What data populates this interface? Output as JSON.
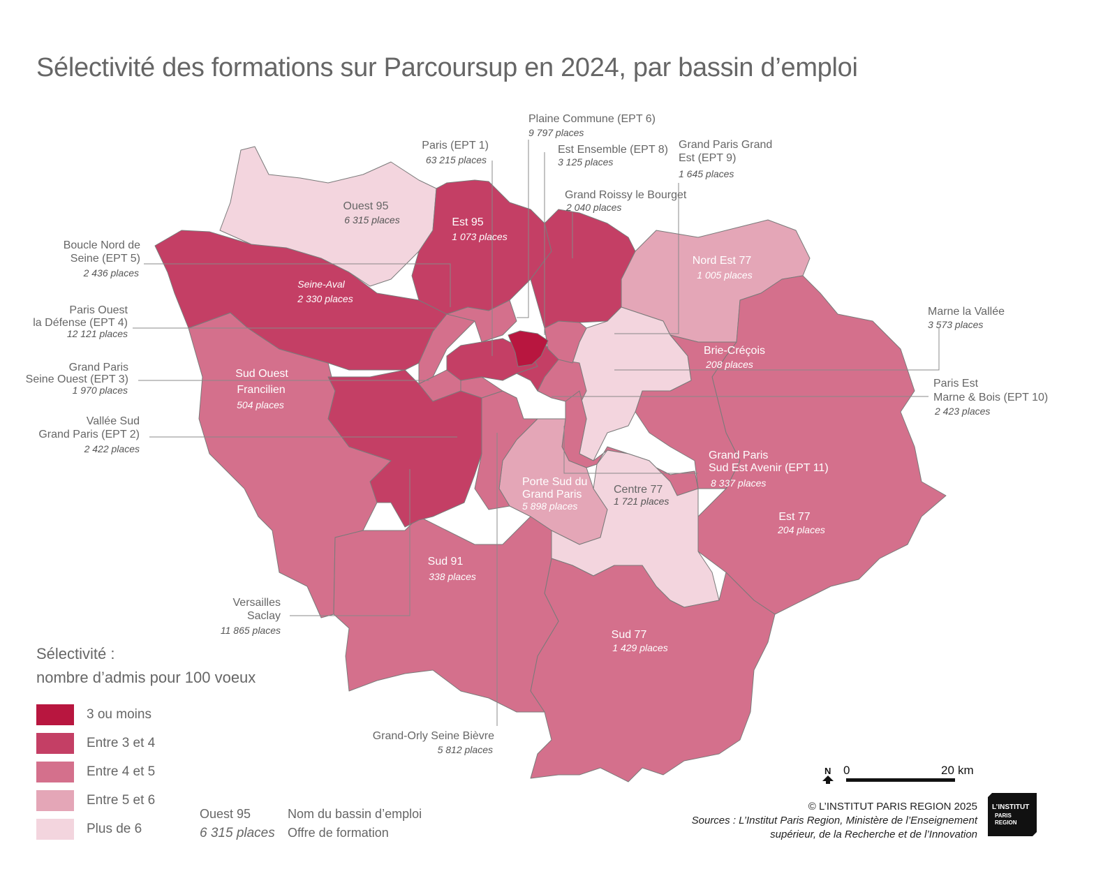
{
  "title": "Sélectivité des formations sur Parcoursup en 2024, par bassin d’emploi",
  "colors": {
    "c1": "#b8163f",
    "c2": "#c43f65",
    "c3": "#d4708c",
    "c4": "#e4a6b7",
    "c5": "#f3d5de"
  },
  "regions": [
    {
      "id": "ouest95",
      "name": "Ouest 95",
      "places": "6 315 places",
      "class": 5
    },
    {
      "id": "est95",
      "name": "Est 95",
      "places": "1 073 places",
      "class": 2
    },
    {
      "id": "seineaval",
      "name": "Seine-Aval",
      "places": "2 330 places",
      "class": 2
    },
    {
      "id": "sudouest",
      "name": "Sud Ouest Francilien",
      "places": "504 places",
      "class": 3
    },
    {
      "id": "versailles",
      "name": "Versailles Saclay",
      "places": "11 865 places",
      "class": 2
    },
    {
      "id": "sud91",
      "name": "Sud 91",
      "places": "338 places",
      "class": 3
    },
    {
      "id": "portesud",
      "name": "Porte Sud du Grand Paris",
      "places": "5 898 places",
      "class": 4
    },
    {
      "id": "centre77",
      "name": "Centre 77",
      "places": "1 721 places",
      "class": 5
    },
    {
      "id": "sud77",
      "name": "Sud 77",
      "places": "1 429 places",
      "class": 3
    },
    {
      "id": "est77",
      "name": "Est 77",
      "places": "204 places",
      "class": 3
    },
    {
      "id": "nordest77",
      "name": "Nord Est 77",
      "places": "1 005 places",
      "class": 4
    },
    {
      "id": "briecrecois",
      "name": "Brie-Créçois",
      "places": "208 places",
      "class": 3
    },
    {
      "id": "marnevallee",
      "name": "Marne la Vallée",
      "places": "3 573 places",
      "class": 5
    },
    {
      "id": "gpsea",
      "name": "Grand Paris Sud Est Avenir (EPT 11)",
      "places": "8 337 places",
      "class": 3
    },
    {
      "id": "roissy",
      "name": "Grand Roissy le Bourget",
      "places": "2 040 places",
      "class": 2
    },
    {
      "id": "paris",
      "name": "Paris (EPT 1)",
      "places": "63 215 places",
      "class": 2
    },
    {
      "id": "plaine",
      "name": "Plaine Commune (EPT 6)",
      "places": "9 797 places",
      "class": 1
    },
    {
      "id": "estensemble",
      "name": "Est Ensemble (EPT 8)",
      "places": "3 125 places",
      "class": 2
    },
    {
      "id": "gpge",
      "name": "Grand Paris Grand Est (EPT 9)",
      "places": "1 645 places",
      "class": 3
    },
    {
      "id": "pemb",
      "name": "Paris Est Marne & Bois (EPT 10)",
      "places": "2 423 places",
      "class": 3
    },
    {
      "id": "boucle",
      "name": "Boucle Nord de Seine (EPT 5)",
      "places": "2 436 places",
      "class": 3
    },
    {
      "id": "pold",
      "name": "Paris Ouest la Défense (EPT 4)",
      "places": "12 121 places",
      "class": 3
    },
    {
      "id": "gpso",
      "name": "Grand Paris Seine Ouest (EPT 3)",
      "places": "1 970 places",
      "class": 3
    },
    {
      "id": "vsgp",
      "name": "Vallée Sud Grand Paris (EPT 2)",
      "places": "2 422 places",
      "class": 3
    },
    {
      "id": "gosb",
      "name": "Grand-Orly Seine Bièvre",
      "places": "5 812 places",
      "class": 3
    }
  ],
  "labels": {
    "plaine_name": "Plaine Commune (EPT 6)",
    "plaine_places": "9 797 places",
    "paris_name": "Paris (EPT 1)",
    "paris_places": "63 215 places",
    "estens_name": "Est Ensemble (EPT 8)",
    "estens_places": "3 125 places",
    "gpge_name1": "Grand Paris Grand",
    "gpge_name2": "Est (EPT 9)",
    "gpge_places": "1 645 places",
    "roissy_name": "Grand Roissy le Bourget",
    "roissy_places": "2 040 places",
    "ouest95_name": "Ouest 95",
    "ouest95_places": "6 315 places",
    "est95_name": "Est 95",
    "est95_places": "1 073 places",
    "nordest77_name": "Nord Est 77",
    "nordest77_places": "1 005 places",
    "boucle_name1": "Boucle Nord de",
    "boucle_name2": "Seine (EPT 5)",
    "boucle_places": "2 436 places",
    "seineaval_name": "Seine-Aval",
    "seineaval_places": "2 330 places",
    "pold_name1": "Paris Ouest",
    "pold_name2": "la Défense (EPT 4)",
    "pold_places": "12 121 places",
    "marne_name": "Marne la Vallée",
    "marne_places": "3 573 places",
    "brie_name": "Brie-Créçois",
    "brie_places": "208 places",
    "gpso_name1": "Grand Paris",
    "gpso_name2": "Seine Ouest (EPT 3)",
    "gpso_places": "1 970 places",
    "sudouest_name1": "Sud Ouest",
    "sudouest_name2": "Francilien",
    "sudouest_places": "504 places",
    "pemb_name1": "Paris Est",
    "pemb_name2": "Marne & Bois (EPT 10)",
    "pemb_places": "2 423 places",
    "vsgp_name1": "Vallée Sud",
    "vsgp_name2": "Grand Paris (EPT 2)",
    "vsgp_places": "2 422 places",
    "gpsea_name1": "Grand Paris",
    "gpsea_name2": "Sud Est Avenir (EPT 11)",
    "gpsea_places": "8 337 places",
    "portesud_name1": "Porte Sud du",
    "portesud_name2": "Grand Paris",
    "portesud_places": "5 898 places",
    "centre77_name": "Centre 77",
    "centre77_places": "1 721 places",
    "est77_name": "Est 77",
    "est77_places": "204 places",
    "sud91_name": "Sud 91",
    "sud91_places": "338 places",
    "versailles_name1": "Versailles",
    "versailles_name2": "Saclay",
    "versailles_places": "11 865 places",
    "sud77_name": "Sud 77",
    "sud77_places": "1 429 places",
    "gosb_name": "Grand-Orly Seine Bièvre",
    "gosb_places": "5 812 places"
  },
  "legend": {
    "title_line1": "Sélectivité :",
    "title_line2": "nombre d’admis pour 100 voeux",
    "items": [
      {
        "label": "3 ou moins",
        "color": "#b8163f"
      },
      {
        "label": "Entre 3 et 4",
        "color": "#c43f65"
      },
      {
        "label": "Entre 4 et 5",
        "color": "#d4708c"
      },
      {
        "label": "Entre 5 et 6",
        "color": "#e4a6b7"
      },
      {
        "label": "Plus de 6",
        "color": "#f3d5de"
      }
    ],
    "example_name": "Ouest 95",
    "example_places": "6 315 places",
    "example_name_desc": "Nom du bassin d’emploi",
    "example_places_desc": "Offre de formation"
  },
  "scale": {
    "north": "N",
    "start": "0",
    "end": "20",
    "unit": "km"
  },
  "credits": {
    "copyright": "© L’INSTITUT PARIS REGION 2025",
    "sources_line1": "Sources : L’Institut Paris Region, Ministère de l’Enseignement",
    "sources_line2": "supérieur, de la Recherche et de l’Innovation"
  },
  "logo": {
    "line1": "L’INSTITUT",
    "line2": "PARIS",
    "line3": "REGION"
  }
}
